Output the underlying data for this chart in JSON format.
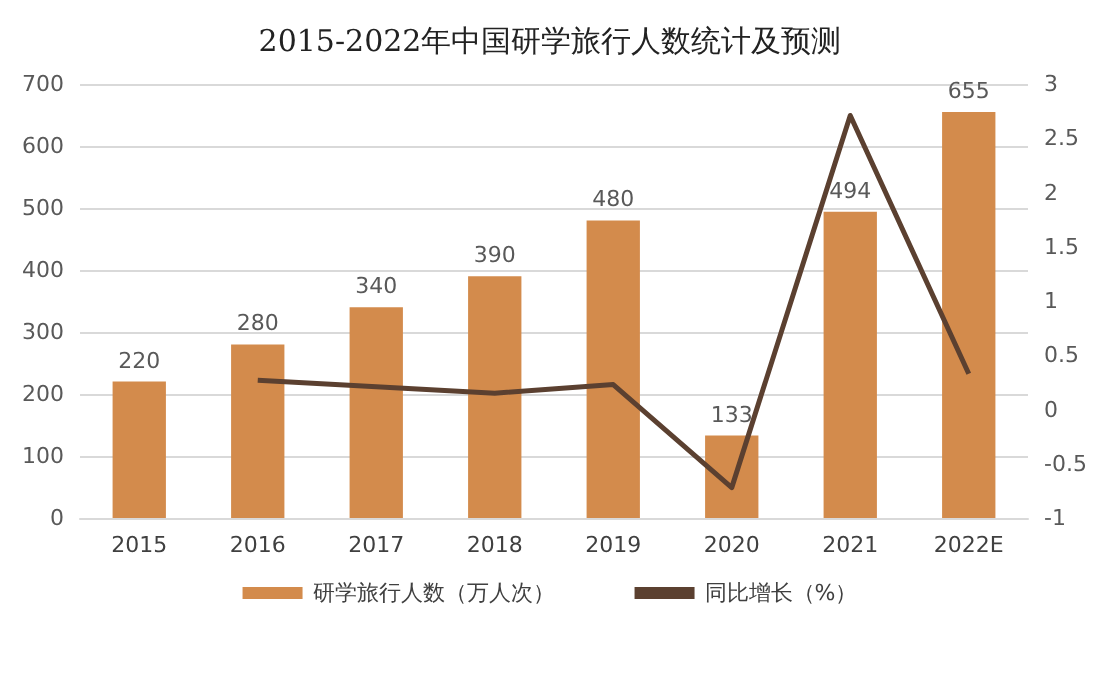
{
  "chart_data": {
    "type": "bar",
    "title": "2015-2022年中国研学旅行人数统计及预测",
    "categories": [
      "2015",
      "2016",
      "2017",
      "2018",
      "2019",
      "2020",
      "2021",
      "2022E"
    ],
    "series": [
      {
        "name": "研学旅行人数（万人次）",
        "color": "#d38b4c",
        "values": [
          220,
          280,
          340,
          390,
          480,
          133,
          494,
          655
        ]
      },
      {
        "name": "同比增长（%）",
        "type": "line",
        "axis": "y2",
        "color": "#5b4030",
        "values": [
          null,
          0.27,
          0.21,
          0.15,
          0.23,
          -0.72,
          2.71,
          0.33
        ]
      }
    ],
    "value_labels": [
      [
        "220",
        "280",
        "340",
        "390",
        "480",
        "133",
        "494",
        "655"
      ],
      null
    ],
    "ylim": [
      0,
      700
    ],
    "yticks": [
      0,
      100,
      200,
      300,
      400,
      500,
      600,
      700
    ],
    "y2lim": [
      -1,
      3
    ],
    "y2ticks": [
      -1,
      -0.5,
      0,
      0.5,
      1,
      1.5,
      2,
      2.5,
      3
    ],
    "grid": "y",
    "legend": "bottom",
    "marker": "none"
  }
}
